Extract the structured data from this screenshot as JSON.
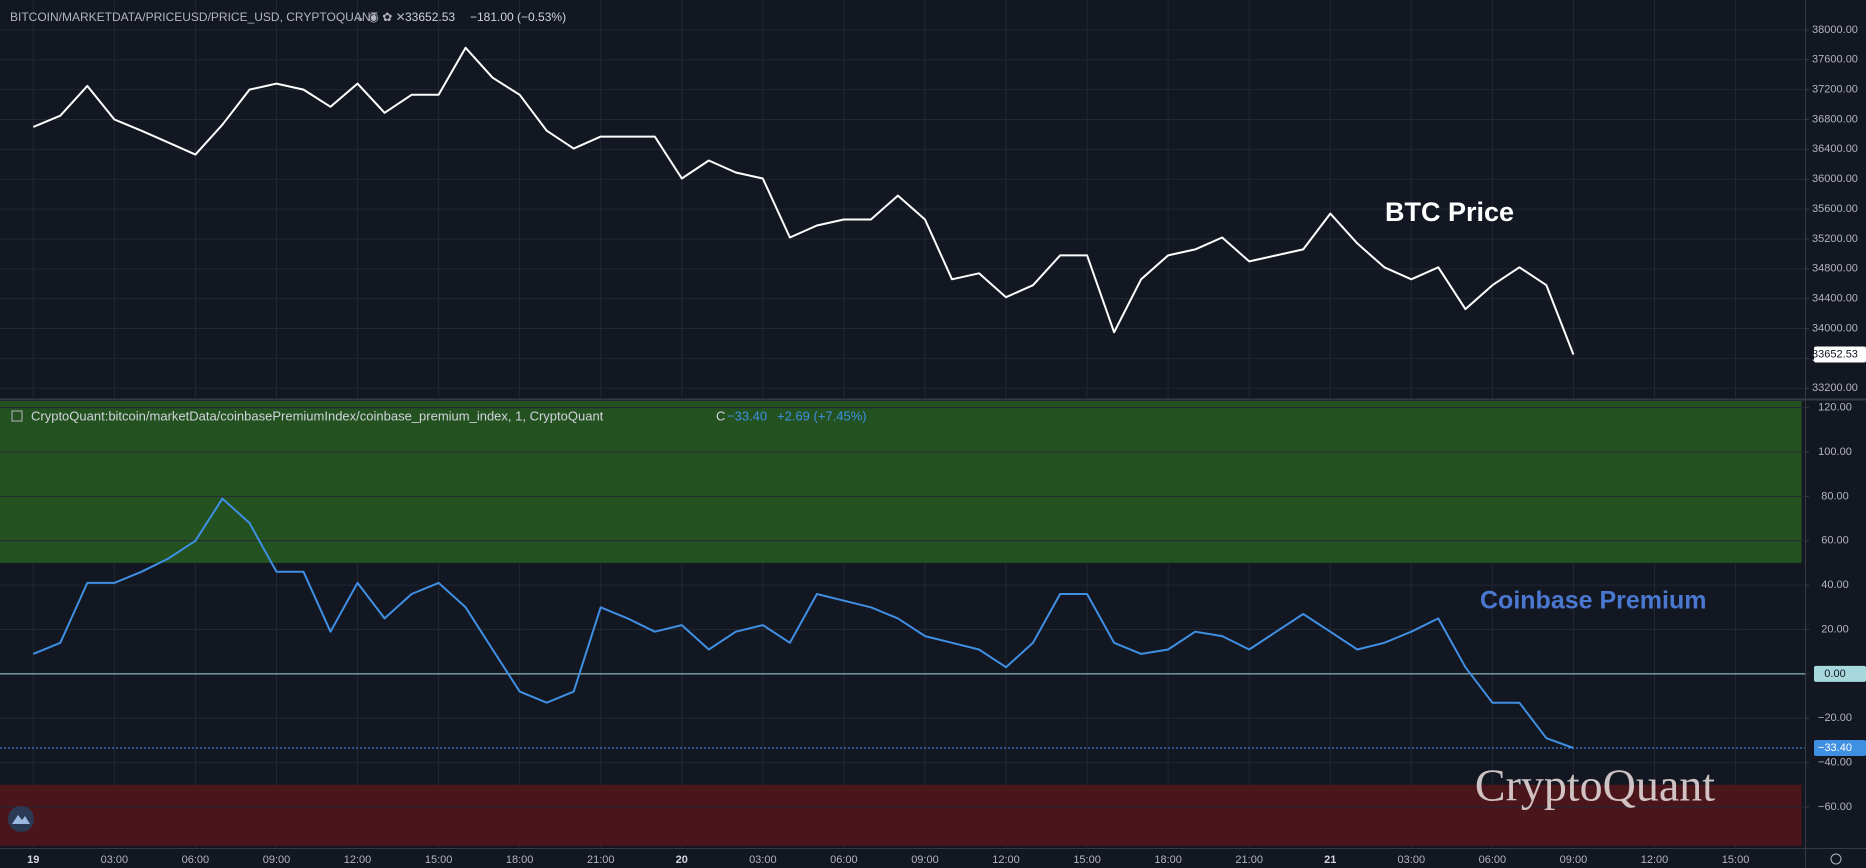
{
  "chart_data": [
    {
      "type": "line",
      "title": "BITCOIN/MARKETDATA/PRICEUSD/PRICE_USD, CRYPTOQUANT",
      "last_label": "33652.53",
      "change": "−181.00 (−0.53%)",
      "annotation": "BTC Price",
      "color": "#ffffff",
      "ylim": [
        33070,
        38400
      ],
      "yticks": [
        {
          "value": 33200,
          "label": "33200.00"
        },
        {
          "value": 33600,
          "label": "33600.00"
        },
        {
          "value": 34000,
          "label": "34000.00"
        },
        {
          "value": 34400,
          "label": "34400.00"
        },
        {
          "value": 34800,
          "label": "34800.00"
        },
        {
          "value": 35200,
          "label": "35200.00"
        },
        {
          "value": 35600,
          "label": "35600.00"
        },
        {
          "value": 36000,
          "label": "36000.00"
        },
        {
          "value": 36400,
          "label": "36400.00"
        },
        {
          "value": 36800,
          "label": "36800.00"
        },
        {
          "value": 37200,
          "label": "37200.00"
        },
        {
          "value": 37600,
          "label": "37600.00"
        },
        {
          "value": 38000,
          "label": "38000.00"
        }
      ],
      "grid": true,
      "values": [
        36700,
        36850,
        37250,
        36800,
        36650,
        36490,
        36330,
        36730,
        37200,
        37280,
        37200,
        36970,
        37280,
        36890,
        37130,
        37130,
        37760,
        37360,
        37130,
        36650,
        36410,
        36570,
        36570,
        36570,
        36010,
        36250,
        36090,
        36010,
        35220,
        35380,
        35460,
        35460,
        35780,
        35460,
        34660,
        34740,
        34420,
        34580,
        34980,
        34980,
        33950,
        34660,
        34980,
        35060,
        35220,
        34900,
        34980,
        35060,
        35540,
        35140,
        34820,
        34660,
        34820,
        34260,
        34580,
        34820,
        34580,
        33652.53,
        null,
        null,
        null,
        null,
        null,
        null,
        null,
        null
      ]
    },
    {
      "type": "line",
      "title": "CryptoQuant:bitcoin/marketData/coinbasePremiumIndex/coinbase_premium_index, 1, CryptoQuant",
      "close_prefix": "C",
      "last_label": "−33.40",
      "change": "+2.69 (+7.45%)",
      "annotation": "Coinbase Premium",
      "watermark": "CryptoQuant",
      "color": "#3f8fe3",
      "ylim": [
        -78.5,
        123
      ],
      "yticks": [
        {
          "value": -60,
          "label": "−60.00"
        },
        {
          "value": -40,
          "label": "−40.00"
        },
        {
          "value": -20,
          "label": "−20.00"
        },
        {
          "value": 0,
          "label": "0.00"
        },
        {
          "value": 20,
          "label": "20.00"
        },
        {
          "value": 40,
          "label": "40.00"
        },
        {
          "value": 60,
          "label": "60.00"
        },
        {
          "value": 80,
          "label": "80.00"
        },
        {
          "value": 100,
          "label": "100.00"
        },
        {
          "value": 120,
          "label": "120.00"
        }
      ],
      "grid": true,
      "zero_line_color": "#a7d8de",
      "bands": [
        {
          "from": 50,
          "to": 123,
          "color": "#245120"
        },
        {
          "from": -50,
          "to": -77.5,
          "color": "#4a161b"
        }
      ],
      "categories": [
        "19",
        null,
        null,
        "03:00",
        null,
        null,
        "06:00",
        null,
        null,
        "09:00",
        null,
        null,
        "12:00",
        null,
        null,
        "15:00",
        null,
        null,
        "18:00",
        null,
        null,
        "21:00",
        null,
        null,
        "20",
        null,
        null,
        "03:00",
        null,
        null,
        "06:00",
        null,
        null,
        "09:00",
        null,
        null,
        "12:00",
        null,
        null,
        "15:00",
        null,
        null,
        "18:00",
        null,
        null,
        "21:00",
        null,
        null,
        "21",
        null,
        null,
        "03:00",
        null,
        null,
        "06:00",
        null,
        null,
        "09:00",
        null,
        null,
        "12:00",
        null,
        null,
        "15:00",
        null,
        null
      ],
      "values": [
        9,
        14,
        41,
        41,
        46,
        52,
        60,
        79,
        68,
        46,
        46,
        19,
        41,
        25,
        36,
        41,
        30,
        11,
        -8,
        -13,
        -8,
        30,
        25,
        19,
        22,
        11,
        19,
        22,
        14,
        36,
        33,
        30,
        25,
        17,
        14,
        11,
        3,
        14,
        36,
        36,
        14,
        9,
        11,
        19,
        17,
        11,
        19,
        27,
        19,
        11,
        14,
        19,
        25,
        3,
        -13,
        -13,
        -29,
        -33.4,
        null,
        null,
        null,
        null,
        null,
        null,
        null,
        null
      ]
    }
  ]
}
